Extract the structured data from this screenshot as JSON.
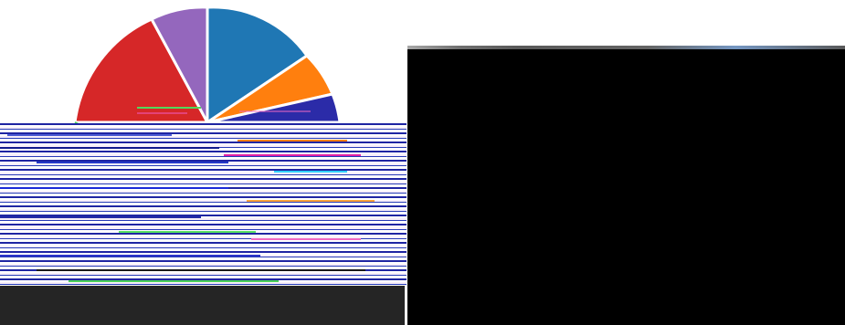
{
  "screen": {
    "background": "#ffffff"
  },
  "left_panel": {
    "pie": {
      "type": "pie",
      "colors": [
        "#1f77b4",
        "#ff7f0e",
        "#2b2ba8",
        "#d62728",
        "#9467bd"
      ],
      "glitched": true
    },
    "footer_color": "#252525"
  },
  "right_panel": {
    "background": "#000000"
  }
}
